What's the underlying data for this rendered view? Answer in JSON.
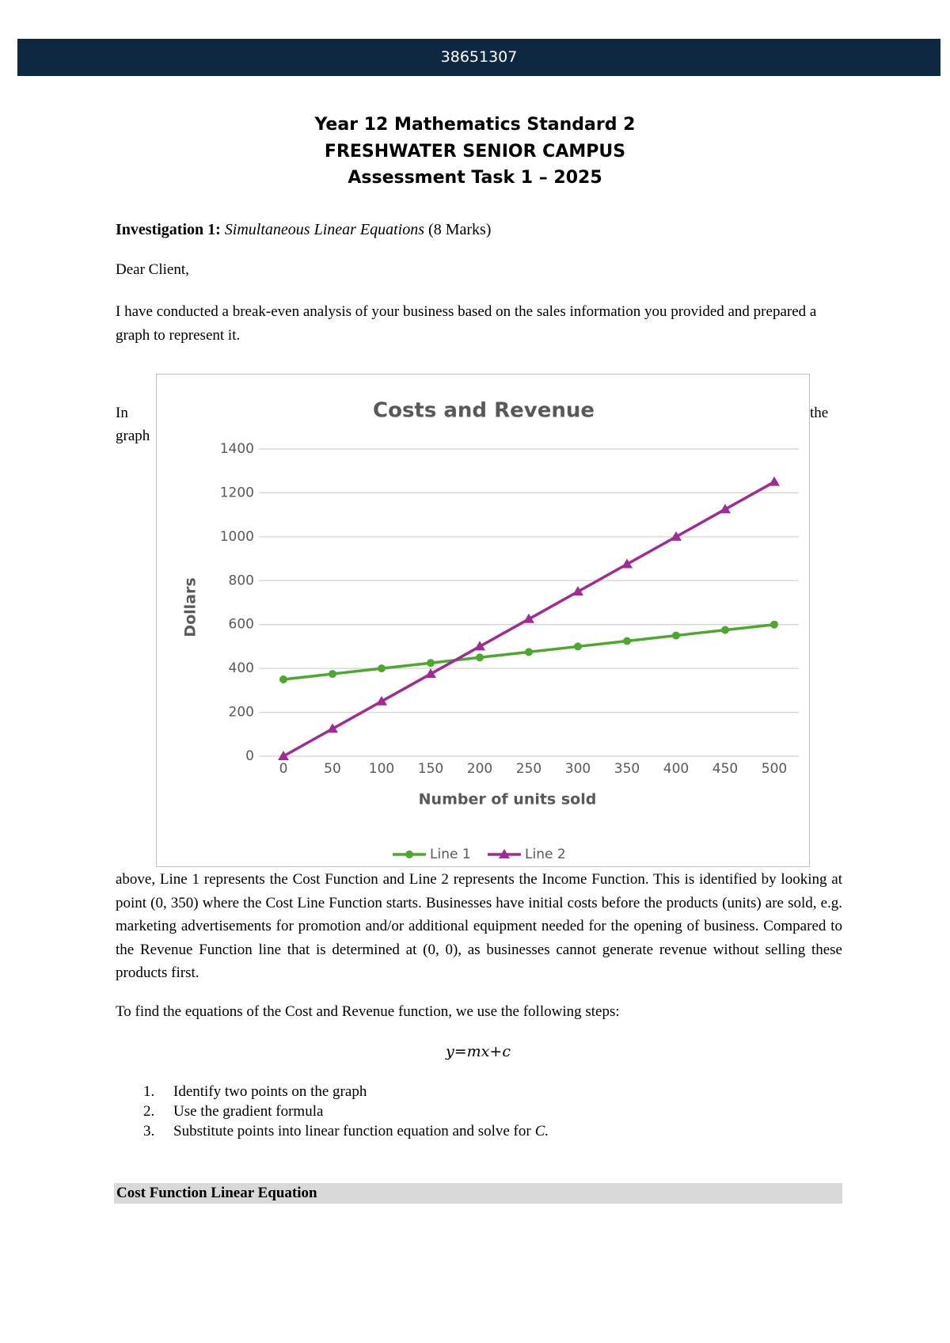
{
  "header": {
    "id": "38651307"
  },
  "title": {
    "line1": "Year 12 Mathematics Standard 2",
    "line2": "FRESHWATER SENIOR CAMPUS",
    "line3": "Assessment Task 1 – 2025"
  },
  "investigation": {
    "label": "Investigation 1:",
    "topic": "Simultaneous Linear Equations",
    "marks": "(8 Marks)"
  },
  "salutation": "Dear Client,",
  "intro": "I have conducted a break-even analysis of your business based on the sales information you provided and prepared a graph to represent it.",
  "hidden_text": {
    "left": "In",
    "right": "the",
    "second_line": "graph"
  },
  "paragraph": "above, Line 1 represents the Cost Function and Line 2 represents the Income Function. This is identified by looking at point (0, 350) where the Cost Line Function starts. Businesses have initial costs before the products (units) are sold, e.g. marketing advertisements for promotion and/or additional equipment needed for the opening of business. Compared to the Revenue Function line that is determined at (0, 0), as businesses cannot generate revenue without selling these products first.",
  "steps_intro": "To find the equations of the Cost and Revenue function, we use the following steps:",
  "formula": "y=mx+c",
  "steps": [
    {
      "number": "1.",
      "text": "Identify two points on the graph"
    },
    {
      "number": "2.",
      "text": "Use the gradient formula"
    },
    {
      "number": "3.",
      "text": "Substitute points into linear function equation and solve for",
      "variable": "C."
    }
  ],
  "section_heading": "Cost Function Linear Equation",
  "chart_data": {
    "type": "line",
    "title": "Costs and Revenue",
    "x_label": "Number of units sold",
    "y_label": "Dollars",
    "x": [
      0,
      50,
      100,
      150,
      200,
      250,
      300,
      350,
      400,
      450,
      500
    ],
    "xlim": [
      -25,
      525
    ],
    "xticks": [
      0,
      50,
      100,
      150,
      200,
      250,
      300,
      350,
      400,
      450,
      500
    ],
    "ylim": [
      0,
      1400
    ],
    "yticks": [
      0,
      200,
      400,
      600,
      800,
      1000,
      1200,
      1400
    ],
    "grid": true,
    "legend": "bottom",
    "series": [
      {
        "name": "Line 1",
        "color": "#4ea72e",
        "marker": "circle",
        "values": [
          350,
          375,
          400,
          425,
          450,
          475,
          500,
          525,
          550,
          575,
          600
        ]
      },
      {
        "name": "Line 2",
        "color": "#a02b93",
        "marker": "triangle",
        "values": [
          0,
          125,
          250,
          375,
          500,
          625,
          750,
          875,
          1000,
          1125,
          1250
        ]
      }
    ]
  }
}
